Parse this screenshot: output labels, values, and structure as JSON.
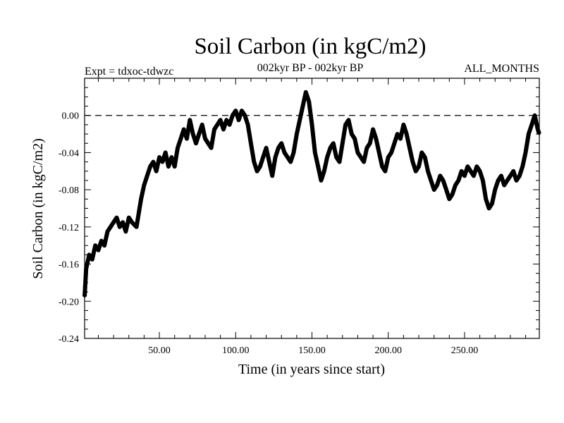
{
  "chart_data": {
    "type": "line",
    "title": "Soil Carbon (in kgC/m2)",
    "subtitle": "002kyr BP - 002kyr BP",
    "experiment_label": "Expt = tdxoc-tdwzc",
    "season_label": "ALL_MONTHS",
    "xlabel": "Time (in years since start)",
    "ylabel": "Soil Carbon (in kgC/m2)",
    "xlim": [
      1,
      299
    ],
    "ylim": [
      -0.24,
      0.04
    ],
    "x_ticks": [
      50,
      100,
      150,
      200,
      250
    ],
    "x_tick_labels": [
      "50.00",
      "100.00",
      "150.00",
      "200.00",
      "250.00"
    ],
    "y_ticks": [
      0.0,
      -0.04,
      -0.08,
      -0.12,
      -0.16,
      -0.2,
      -0.24
    ],
    "y_tick_labels": [
      "0.00",
      "-0.04",
      "-0.08",
      "-0.12",
      "-0.16",
      "-0.20",
      "-0.24"
    ],
    "reference_line": {
      "y": 0.0,
      "style": "dashed"
    },
    "grid": false,
    "line_color": "#000000",
    "series": [
      {
        "x": [
          1,
          2,
          4,
          6,
          8,
          10,
          12,
          14,
          16,
          18,
          20,
          22,
          24,
          26,
          28,
          30,
          32,
          35,
          38,
          40,
          42,
          44,
          46,
          48,
          50,
          52,
          54,
          56,
          58,
          60,
          62,
          64,
          66,
          68,
          70,
          72,
          74,
          76,
          78,
          80,
          82,
          84,
          86,
          88,
          90,
          92,
          94,
          96,
          98,
          100,
          102,
          104,
          106,
          108,
          110,
          112,
          114,
          116,
          118,
          120,
          122,
          124,
          126,
          128,
          130,
          132,
          134,
          136,
          138,
          140,
          142,
          144,
          146,
          148,
          150,
          152,
          154,
          156,
          158,
          160,
          162,
          164,
          166,
          168,
          170,
          172,
          174,
          176,
          178,
          180,
          182,
          184,
          186,
          188,
          190,
          192,
          194,
          196,
          198,
          200,
          202,
          204,
          206,
          208,
          210,
          212,
          214,
          216,
          218,
          220,
          222,
          224,
          226,
          228,
          230,
          232,
          234,
          236,
          238,
          240,
          242,
          244,
          246,
          248,
          250,
          252,
          254,
          256,
          258,
          260,
          262,
          264,
          266,
          268,
          270,
          272,
          274,
          276,
          278,
          280,
          282,
          284,
          286,
          288,
          290,
          292,
          294,
          296,
          298,
          299
        ],
        "y": [
          -0.195,
          -0.165,
          -0.15,
          -0.155,
          -0.14,
          -0.145,
          -0.135,
          -0.14,
          -0.125,
          -0.12,
          -0.115,
          -0.11,
          -0.12,
          -0.115,
          -0.125,
          -0.11,
          -0.115,
          -0.12,
          -0.09,
          -0.075,
          -0.065,
          -0.055,
          -0.05,
          -0.06,
          -0.045,
          -0.05,
          -0.04,
          -0.055,
          -0.045,
          -0.055,
          -0.035,
          -0.025,
          -0.015,
          -0.025,
          -0.005,
          -0.02,
          -0.03,
          -0.02,
          -0.01,
          -0.025,
          -0.03,
          -0.035,
          -0.015,
          -0.01,
          -0.005,
          -0.015,
          -0.005,
          -0.01,
          0.0,
          0.005,
          -0.005,
          0.005,
          0.0,
          -0.01,
          -0.03,
          -0.05,
          -0.06,
          -0.055,
          -0.045,
          -0.035,
          -0.05,
          -0.065,
          -0.045,
          -0.035,
          -0.03,
          -0.04,
          -0.045,
          -0.05,
          -0.04,
          -0.02,
          -0.005,
          0.01,
          0.025,
          0.015,
          -0.01,
          -0.04,
          -0.055,
          -0.07,
          -0.06,
          -0.045,
          -0.035,
          -0.03,
          -0.045,
          -0.05,
          -0.03,
          -0.01,
          -0.005,
          -0.02,
          -0.025,
          -0.04,
          -0.045,
          -0.05,
          -0.035,
          -0.03,
          -0.015,
          -0.025,
          -0.04,
          -0.055,
          -0.06,
          -0.045,
          -0.04,
          -0.03,
          -0.02,
          -0.025,
          -0.01,
          -0.02,
          -0.035,
          -0.05,
          -0.06,
          -0.055,
          -0.04,
          -0.045,
          -0.06,
          -0.07,
          -0.08,
          -0.075,
          -0.065,
          -0.07,
          -0.08,
          -0.09,
          -0.085,
          -0.075,
          -0.07,
          -0.06,
          -0.065,
          -0.055,
          -0.06,
          -0.065,
          -0.055,
          -0.06,
          -0.07,
          -0.09,
          -0.1,
          -0.095,
          -0.08,
          -0.07,
          -0.065,
          -0.075,
          -0.07,
          -0.065,
          -0.06,
          -0.07,
          -0.065,
          -0.055,
          -0.04,
          -0.02,
          -0.01,
          0.0,
          -0.015,
          -0.02
        ]
      }
    ]
  }
}
